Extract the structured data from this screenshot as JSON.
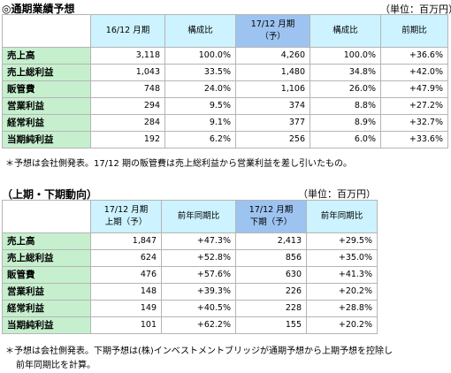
{
  "section1": {
    "title": "◎通期業績予想",
    "unit": "（単位：百万円）",
    "headers": {
      "h1": "16/12 月期",
      "h2": "構成比",
      "h3a": "17/12 月期",
      "h3b": "（予）",
      "h4": "構成比",
      "h5": "前期比"
    },
    "rows": [
      {
        "label": "売上高",
        "v1": "3,118",
        "v2": "100.0%",
        "v3": "4,260",
        "v4": "100.0%",
        "v5": "+36.6%"
      },
      {
        "label": "売上総利益",
        "v1": "1,043",
        "v2": "33.5%",
        "v3": "1,480",
        "v4": "34.8%",
        "v5": "+42.0%"
      },
      {
        "label": "販管費",
        "v1": "748",
        "v2": "24.0%",
        "v3": "1,106",
        "v4": "26.0%",
        "v5": "+47.9%"
      },
      {
        "label": "営業利益",
        "v1": "294",
        "v2": "9.5%",
        "v3": "374",
        "v4": "8.8%",
        "v5": "+27.2%"
      },
      {
        "label": "経常利益",
        "v1": "284",
        "v2": "9.1%",
        "v3": "377",
        "v4": "8.9%",
        "v5": "+32.7%"
      },
      {
        "label": "当期純利益",
        "v1": "192",
        "v2": "6.2%",
        "v3": "256",
        "v4": "6.0%",
        "v5": "+33.6%"
      }
    ],
    "note": "＊予想は会社側発表。17/12 期の販管費は売上総利益から営業利益を差し引いたもの。"
  },
  "section2": {
    "title": "（上期・下期動向）",
    "unit": "（単位：百万円）",
    "headers": {
      "h1a": "17/12 月期",
      "h1b": "上期（予）",
      "h2": "前年同期比",
      "h3a": "17/12 月期",
      "h3b": "下期（予）",
      "h4": "前年同期比"
    },
    "rows": [
      {
        "label": "売上高",
        "v1": "1,847",
        "v2": "+47.3%",
        "v3": "2,413",
        "v4": "+29.5%"
      },
      {
        "label": "売上総利益",
        "v1": "624",
        "v2": "+52.8%",
        "v3": "856",
        "v4": "+35.0%"
      },
      {
        "label": "販管費",
        "v1": "476",
        "v2": "+57.6%",
        "v3": "630",
        "v4": "+41.3%"
      },
      {
        "label": "営業利益",
        "v1": "148",
        "v2": "+39.3%",
        "v3": "226",
        "v4": "+20.2%"
      },
      {
        "label": "経常利益",
        "v1": "149",
        "v2": "+40.5%",
        "v3": "228",
        "v4": "+28.8%"
      },
      {
        "label": "当期純利益",
        "v1": "101",
        "v2": "+62.2%",
        "v3": "155",
        "v4": "+20.2%"
      }
    ],
    "note_line1": "＊予想は会社側発表。下期予想は(株)インベストメントブリッジが通期予想から上期予想を控除し",
    "note_line2": "前年同期比を計算。"
  }
}
